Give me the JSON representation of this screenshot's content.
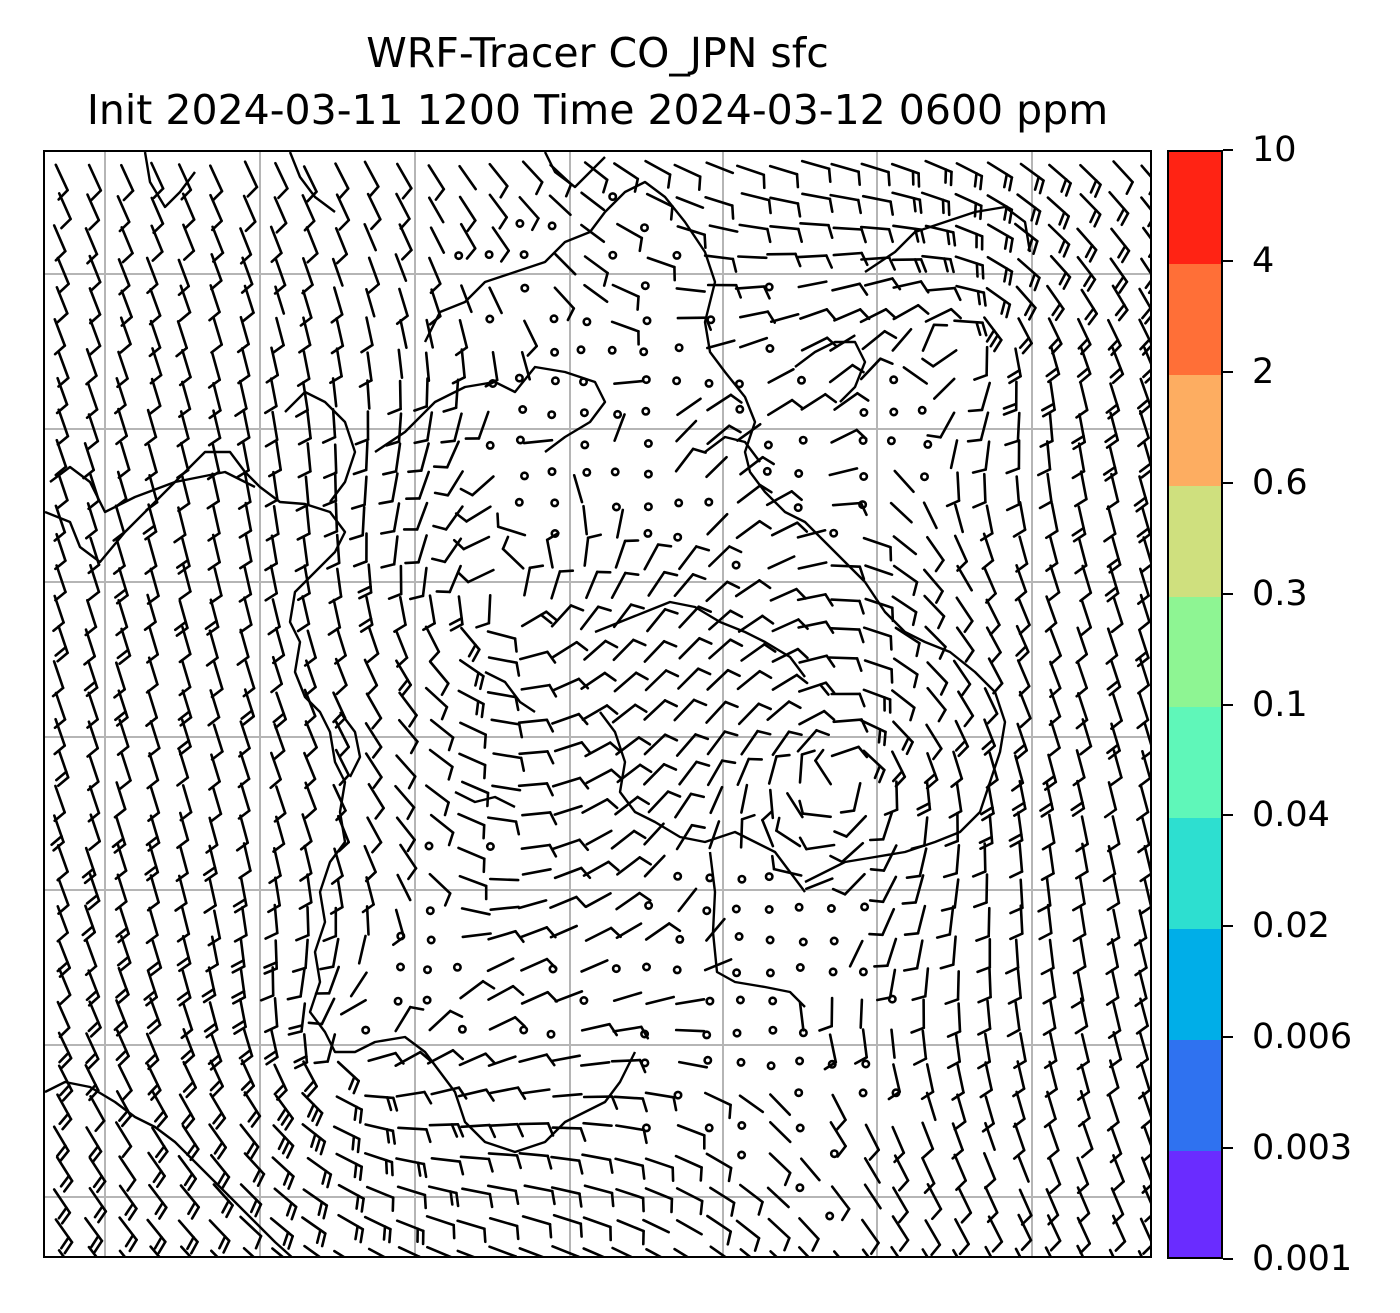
{
  "title": {
    "line1": "WRF-Tracer CO_JPN sfc",
    "line2": "Init 2024-03-11 1200 Time 2024-03-12 0600 ppm"
  },
  "colorbar": {
    "levels": [
      "0.001",
      "0.003",
      "0.006",
      "0.02",
      "0.04",
      "0.1",
      "0.3",
      "0.6",
      "2",
      "4",
      "10"
    ],
    "colors": [
      "#6a2cff",
      "#2f72f0",
      "#00aee8",
      "#2ddfd0",
      "#5ff7b9",
      "#8ef593",
      "#cfe07e",
      "#fdad61",
      "#ff6f37",
      "#ff2314"
    ]
  },
  "map": {
    "field": "surface wind barbs over coastline map",
    "grid": true,
    "tracer_shading": "none visible"
  }
}
